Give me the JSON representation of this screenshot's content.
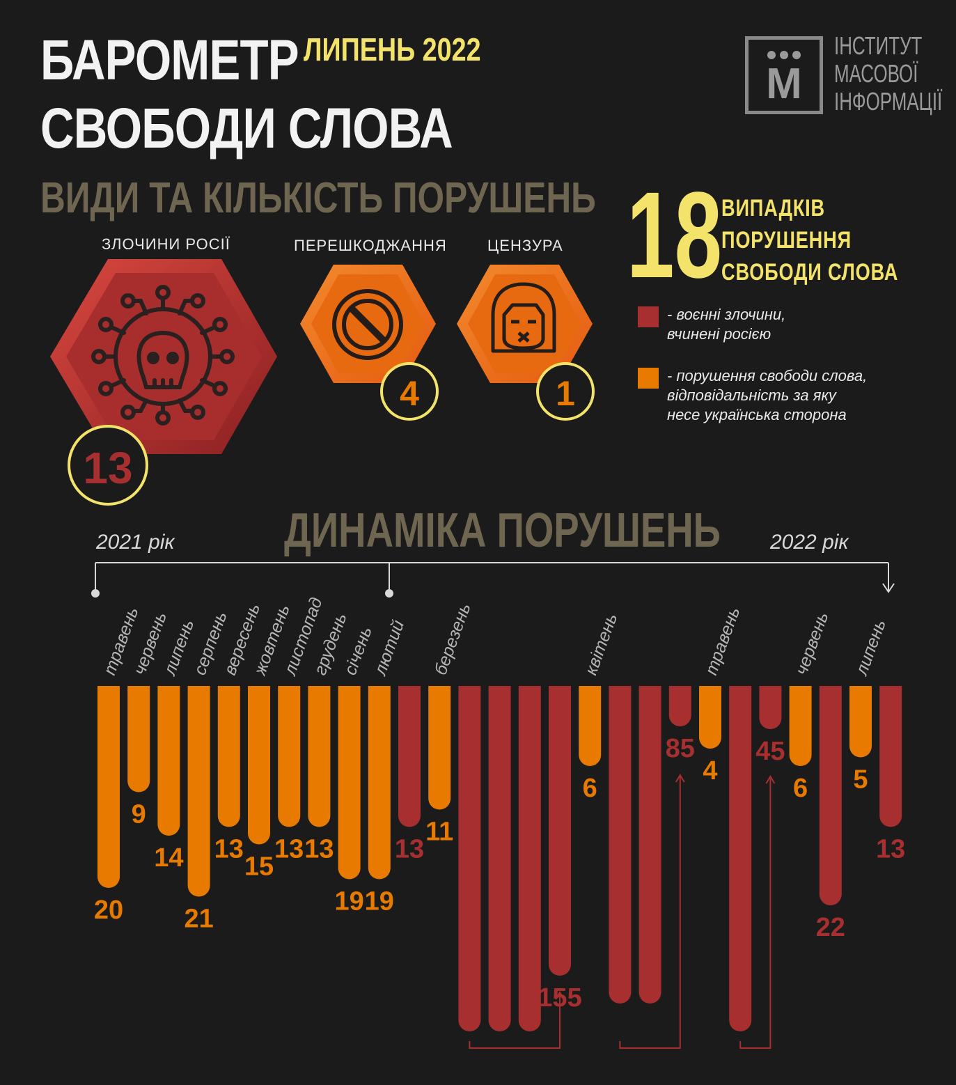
{
  "header": {
    "title_line1": "БАРОМЕТР",
    "title_line2": "СВОБОДИ СЛОВА",
    "month": "ЛИПЕНЬ 2022",
    "subtitle": "ВИДИ ТА КІЛЬКІСТЬ ПОРУШЕНЬ"
  },
  "logo": {
    "letter": "М",
    "line1": "ІНСТИТУТ",
    "line2": "МАСОВОЇ",
    "line3": "ІНФОРМАЦІЇ"
  },
  "summary": {
    "total": "18",
    "line1": "ВИПАДКІВ",
    "line2": "ПОРУШЕННЯ",
    "line3": "СВОБОДИ СЛОВА"
  },
  "categories": [
    {
      "label": "ЗЛОЧИНИ РОСІЇ",
      "count": "13",
      "icon": "skull-virus-icon"
    },
    {
      "label": "ПЕРЕШКОДЖАННЯ",
      "count": "4",
      "icon": "prohibited-icon"
    },
    {
      "label": "ЦЕНЗУРА",
      "count": "1",
      "icon": "silenced-face-icon"
    }
  ],
  "legend": [
    {
      "color": "#a82f2f",
      "line1": "- воєнні злочини,",
      "line2": "вчинені росією",
      "line3": ""
    },
    {
      "color": "#e87a00",
      "line1": "- порушення свободи слова,",
      "line2": "відповідальність за яку",
      "line3": "несе українська сторона"
    }
  ],
  "colors": {
    "orange": "#e87a00",
    "red": "#a82f2f",
    "yellow": "#f3e36a",
    "olive": "#6f6651"
  },
  "chart_data": {
    "type": "bar",
    "title": "ДИНАМІКА ПОРУШЕНЬ",
    "year_start": "2021 рік",
    "year_end": "2022 рік",
    "orientation": "downward",
    "series": [
      {
        "name": "- порушення свободи слова, відповідальність за яку несе українська сторона",
        "color": "#e87a00"
      },
      {
        "name": "- воєнні злочини, вчинені росією",
        "color": "#a82f2f"
      }
    ],
    "bars": [
      {
        "month": "травень",
        "value": 20,
        "label": "20",
        "series": "orange"
      },
      {
        "month": "червень",
        "value": 9,
        "label": "9",
        "series": "orange"
      },
      {
        "month": "липень",
        "value": 14,
        "label": "14",
        "series": "orange"
      },
      {
        "month": "серпень",
        "value": 21,
        "label": "21",
        "series": "orange"
      },
      {
        "month": "вересень",
        "value": 13,
        "label": "13",
        "series": "orange"
      },
      {
        "month": "жовтень",
        "value": 15,
        "label": "15",
        "series": "orange"
      },
      {
        "month": "листопад",
        "value": 13,
        "label": "13",
        "series": "orange"
      },
      {
        "month": "грудень",
        "value": 13,
        "label": "13",
        "series": "orange"
      },
      {
        "month": "січень",
        "value": 19,
        "label": "19",
        "series": "orange"
      },
      {
        "month": "лютий",
        "value": 19,
        "label": "19",
        "series": "orange"
      },
      {
        "month": "",
        "value": 13,
        "label": "13",
        "series": "red"
      },
      {
        "month": "березень",
        "value": 11,
        "label": "11",
        "series": "orange"
      },
      {
        "month": "",
        "value": 155,
        "label": "",
        "series": "red"
      },
      {
        "month": "",
        "value": 155,
        "label": "",
        "series": "red"
      },
      {
        "month": "",
        "value": 155,
        "label": "",
        "series": "red"
      },
      {
        "month": "",
        "value": 155,
        "label": "155",
        "series": "red"
      },
      {
        "month": "квітень",
        "value": 6,
        "label": "6",
        "series": "orange"
      },
      {
        "month": "",
        "value": 85,
        "label": "",
        "series": "red"
      },
      {
        "month": "",
        "value": 85,
        "label": "",
        "series": "red"
      },
      {
        "month": "",
        "value": 85,
        "label": "85",
        "series": "red"
      },
      {
        "month": "травень",
        "value": 4,
        "label": "4",
        "series": "orange"
      },
      {
        "month": "",
        "value": 45,
        "label": "",
        "series": "red"
      },
      {
        "month": "",
        "value": 45,
        "label": "45",
        "series": "red"
      },
      {
        "month": "червень",
        "value": 6,
        "label": "6",
        "series": "orange"
      },
      {
        "month": "",
        "value": 22,
        "label": "22",
        "series": "red"
      },
      {
        "month": "липень",
        "value": 5,
        "label": "5",
        "series": "orange"
      },
      {
        "month": "",
        "value": 13,
        "label": "13",
        "series": "red"
      }
    ]
  }
}
